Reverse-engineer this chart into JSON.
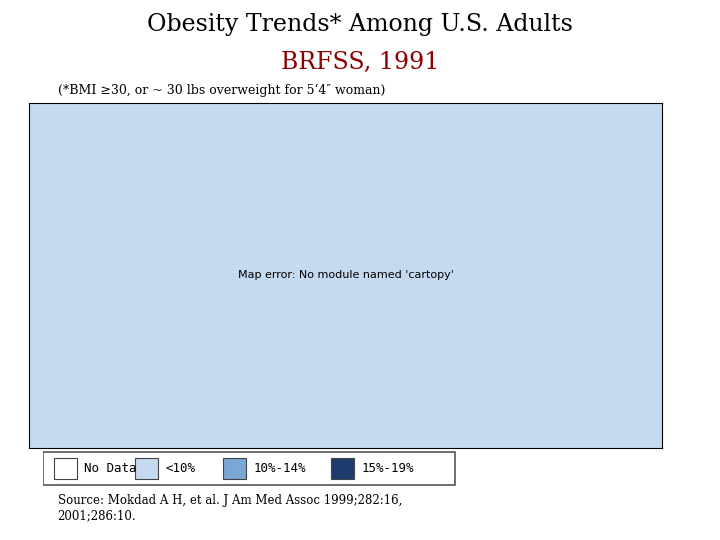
{
  "title_line1": "Obesity Trends* Among U.S. Adults",
  "title_line2": "BRFSS, 1991",
  "subtitle": "(*BMI ≥30, or ~ 30 lbs overweight for 5‘4″ woman)",
  "source": "Source: Mokdad A H, et al. J Am Med Assoc 1999;282:16,\n2001;286:10.",
  "title_color": "#000000",
  "title2_color": "#8B0000",
  "legend_labels": [
    "No Data",
    "<10%",
    "10%-14%",
    "15%-19%"
  ],
  "legend_colors": [
    "#FFFFFF",
    "#C5D9F1",
    "#7BA7D5",
    "#1F3B6E"
  ],
  "legend_edge_color": "#333366",
  "state_colors": {
    "Alabama": "#7BA7D5",
    "Alaska": "#7BA7D5",
    "Arizona": "#C5D9F1",
    "Arkansas": "#7BA7D5",
    "California": "#7BA7D5",
    "Colorado": "#C5D9F1",
    "Connecticut": "#C5D9F1",
    "Delaware": "#C5D9F1",
    "Florida": "#7BA7D5",
    "Georgia": "#7BA7D5",
    "Hawaii": "#7BA7D5",
    "Idaho": "#C5D9F1",
    "Illinois": "#7BA7D5",
    "Indiana": "#7BA7D5",
    "Iowa": "#7BA7D5",
    "Kansas": "#FFFFFF",
    "Kentucky": "#7BA7D5",
    "Louisiana": "#1F3B6E",
    "Maine": "#C5D9F1",
    "Maryland": "#C5D9F1",
    "Massachusetts": "#C5D9F1",
    "Michigan": "#1F3B6E",
    "Minnesota": "#7BA7D5",
    "Mississippi": "#1F3B6E",
    "Missouri": "#7BA7D5",
    "Montana": "#C5D9F1",
    "Nebraska": "#7BA7D5",
    "Nevada": "#C5D9F1",
    "New Hampshire": "#C5D9F1",
    "New Jersey": "#C5D9F1",
    "New Mexico": "#C5D9F1",
    "New York": "#C5D9F1",
    "North Carolina": "#7BA7D5",
    "North Dakota": "#7BA7D5",
    "Ohio": "#7BA7D5",
    "Oklahoma": "#7BA7D5",
    "Oregon": "#7BA7D5",
    "Pennsylvania": "#C5D9F1",
    "Rhode Island": "#C5D9F1",
    "South Carolina": "#7BA7D5",
    "South Dakota": "#7BA7D5",
    "Tennessee": "#7BA7D5",
    "Texas": "#7BA7D5",
    "Utah": "#FFFFFF",
    "Vermont": "#C5D9F1",
    "Virginia": "#7BA7D5",
    "Washington": "#C5D9F1",
    "West Virginia": "#1F3B6E",
    "Wisconsin": "#7BA7D5",
    "Wyoming": "#FFFFFF"
  },
  "default_color": "#FFFFFF",
  "edge_color": "#1A1A6E",
  "edge_width": 1.0,
  "background": "#FFFFFF",
  "fig_width": 7.2,
  "fig_height": 5.4,
  "dpi": 100
}
